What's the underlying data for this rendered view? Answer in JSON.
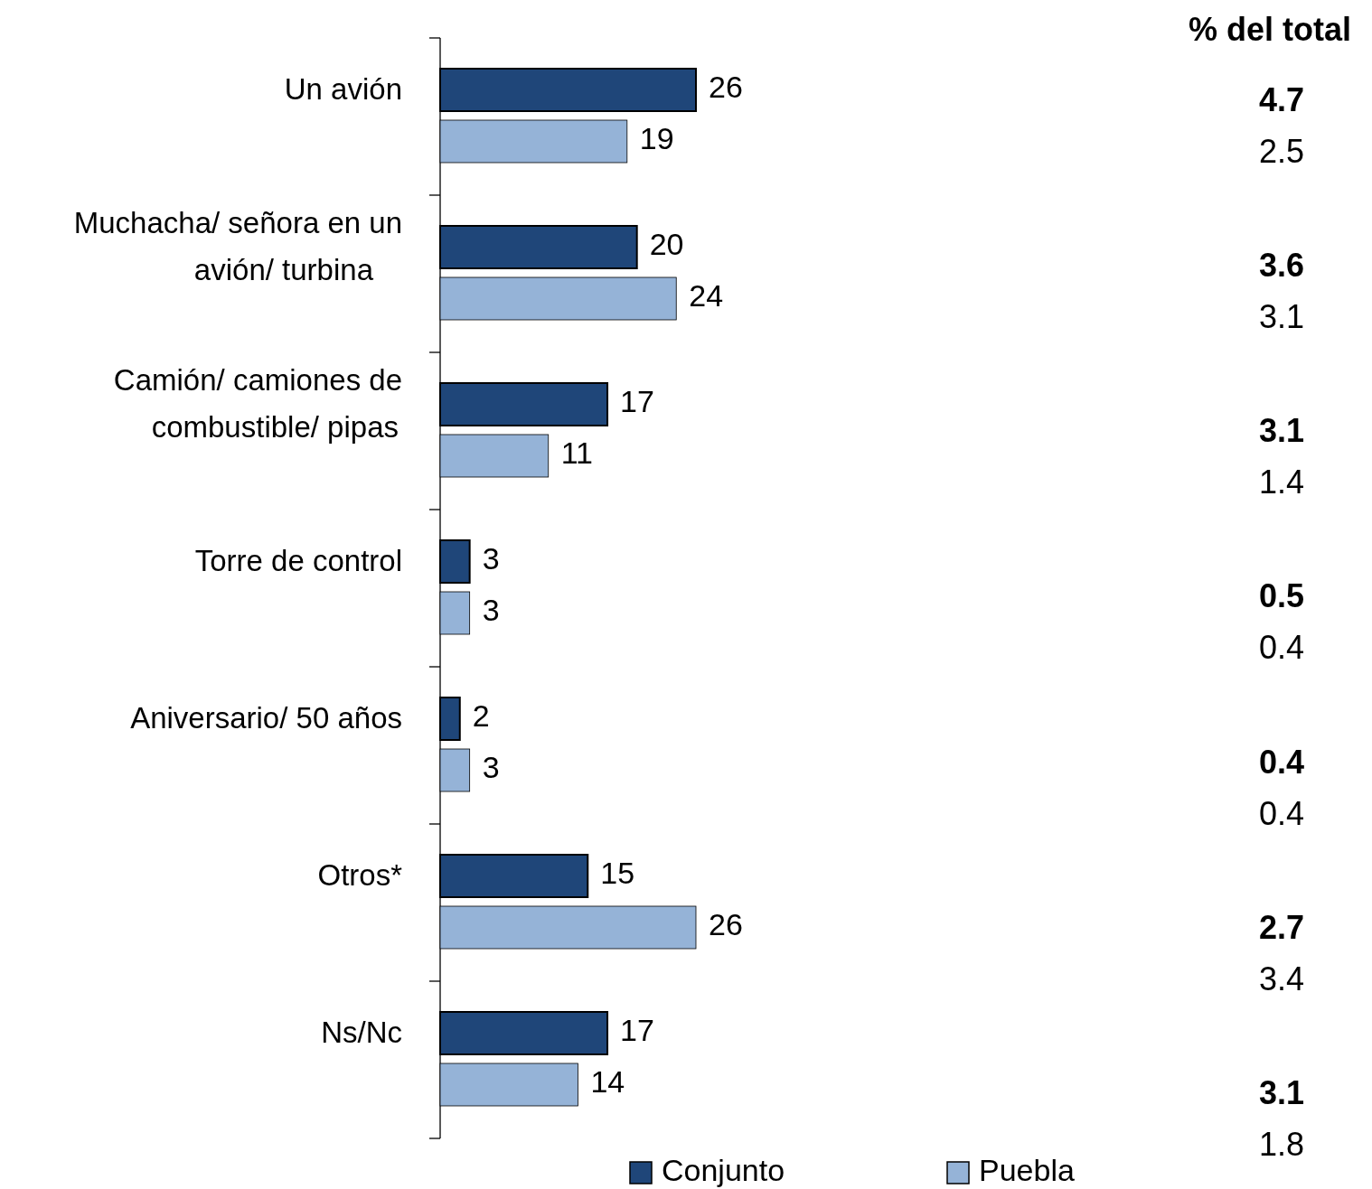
{
  "chart_data": {
    "type": "bar",
    "orientation": "horizontal",
    "categories": [
      "Un avión",
      "Muchacha/ señora en un avión/ turbina",
      "Camión/ camiones de combustible/ pipas",
      "Torre de control",
      "Aniversario/ 50 años",
      "Otros*",
      "Ns/Nc"
    ],
    "series": [
      {
        "name": "Conjunto",
        "color": "#1f4679",
        "values": [
          26,
          20,
          17,
          3,
          2,
          15,
          17
        ]
      },
      {
        "name": "Puebla",
        "color": "#95b3d7",
        "values": [
          19,
          24,
          11,
          3,
          3,
          26,
          14
        ]
      }
    ],
    "data_labels": true,
    "legend": "bottom",
    "annotations": [
      "% del total",
      "4.7",
      "2.5",
      "3.6",
      "3.1",
      "3.1",
      "1.4",
      "0.5",
      "0.4",
      "0.4",
      "0.4",
      "2.7",
      "3.4",
      "3.1",
      "1.8"
    ]
  }
}
